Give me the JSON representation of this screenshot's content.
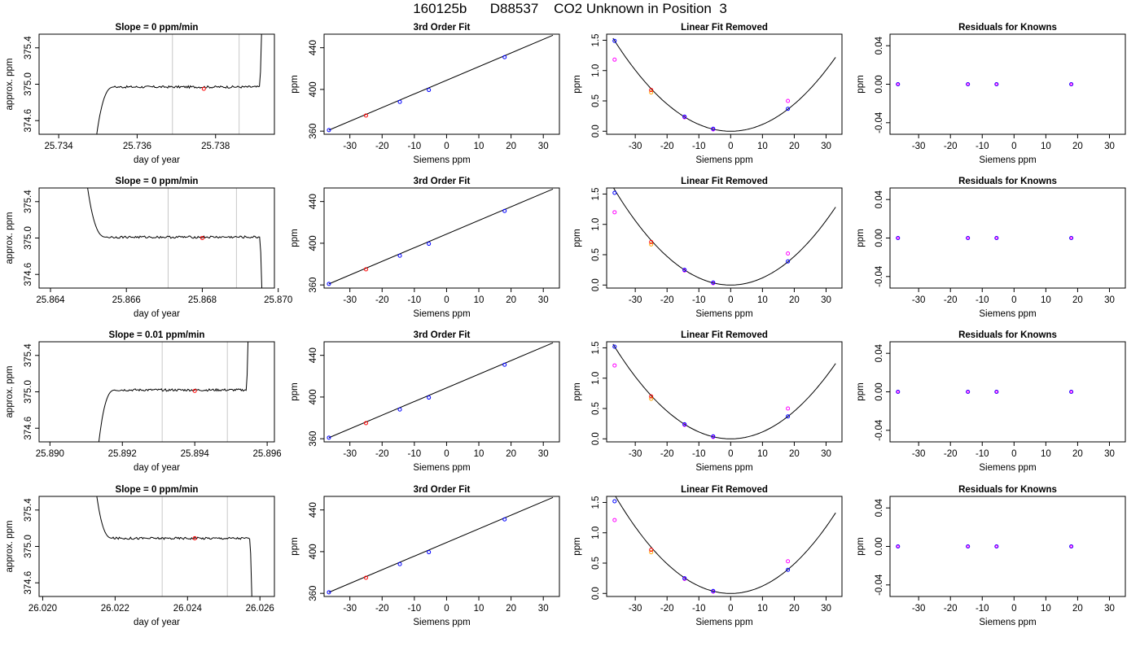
{
  "header": {
    "title": "160125b      D88537    CO2 Unknown in Position  3"
  },
  "colors": {
    "axis": "#000000",
    "trace": "#000000",
    "window_line": "#c8c8c8",
    "known": "#0000ff",
    "unknown": "#ff0000",
    "raw_residual": "#ff00ff",
    "sample_orange": "#ffa500"
  },
  "chart_data": [
    {
      "type": "line",
      "title": "Slope =  0  ppm/min",
      "xlabel": "day of year",
      "ylabel": "approx. ppm",
      "xlim": [
        25.7335,
        25.7395
      ],
      "ylim": [
        374.45,
        375.55
      ],
      "xticks": [
        "25.734",
        "25.736",
        "25.738"
      ],
      "xtick_values": [
        25.734,
        25.736,
        25.738
      ],
      "yticks": [
        "374.6",
        "375.0",
        "375.4"
      ],
      "ytick_values": [
        374.6,
        375.0,
        375.4
      ],
      "window": [
        25.7369,
        25.7386
      ],
      "plateau": 374.97,
      "start": 25.7348,
      "end": 25.7392,
      "end_dir": "up",
      "marker": {
        "x": 25.7377,
        "y": 374.95
      }
    },
    {
      "type": "line",
      "title": "3rd Order Fit",
      "xlabel": "Siemens ppm",
      "ylabel": "ppm",
      "xlim": [
        -38,
        35
      ],
      "ylim": [
        357,
        453
      ],
      "xticks": [
        "-30",
        "-20",
        "-10",
        "0",
        "10",
        "20",
        "30"
      ],
      "xtick_values": [
        -30,
        -20,
        -10,
        0,
        10,
        20,
        30
      ],
      "yticks": [
        "360",
        "400",
        "440"
      ],
      "ytick_values": [
        360,
        400,
        440
      ],
      "line": [
        [
          -36.5,
          361
        ],
        [
          33,
          452
        ]
      ],
      "knowns": [
        [
          -36.5,
          361
        ],
        [
          -14.5,
          388
        ],
        [
          -5.5,
          399.5
        ],
        [
          18,
          431
        ]
      ],
      "unknown": [
        [
          -25,
          375
        ]
      ]
    },
    {
      "type": "line",
      "title": "Linear Fit Removed",
      "xlabel": "Siemens ppm",
      "ylabel": "ppm",
      "xlim": [
        -39,
        35
      ],
      "ylim": [
        -0.05,
        1.6
      ],
      "xticks": [
        "-30",
        "-20",
        "-10",
        "0",
        "10",
        "20",
        "30"
      ],
      "xtick_values": [
        -30,
        -20,
        -10,
        0,
        10,
        20,
        30
      ],
      "yticks": [
        "0.0",
        "0.5",
        "1.0",
        "1.5"
      ],
      "ytick_values": [
        0,
        0.5,
        1.0,
        1.5
      ],
      "curve_k": 0.00112,
      "curve_range": [
        -37,
        33
      ],
      "knowns": [
        [
          -36.5,
          1.49
        ],
        [
          -14.5,
          0.24
        ],
        [
          -5.5,
          0.04
        ],
        [
          18,
          0.37
        ]
      ],
      "raw": [
        [
          -36.5,
          1.18
        ],
        [
          -14.5,
          0.23
        ],
        [
          -5.5,
          0.03
        ],
        [
          18,
          0.5
        ]
      ],
      "unknown": [
        [
          -25,
          0.68
        ]
      ],
      "orange": [
        [
          -25,
          0.64
        ]
      ]
    },
    {
      "type": "scatter",
      "title": "Residuals for Knowns",
      "xlabel": "Siemens ppm",
      "ylabel": "ppm",
      "xlim": [
        -39,
        35
      ],
      "ylim": [
        -0.052,
        0.052
      ],
      "xticks": [
        "-30",
        "-20",
        "-10",
        "0",
        "10",
        "20",
        "30"
      ],
      "xtick_values": [
        -30,
        -20,
        -10,
        0,
        10,
        20,
        30
      ],
      "yticks": [
        "-0.04",
        "0.00",
        "0.04"
      ],
      "ytick_values": [
        -0.04,
        0,
        0.04
      ],
      "points": [
        [
          -36.5,
          0
        ],
        [
          -14.5,
          0
        ],
        [
          -5.5,
          0
        ],
        [
          18,
          0
        ]
      ]
    },
    {
      "type": "line",
      "title": "Slope =  0  ppm/min",
      "xlabel": "day of year",
      "ylabel": "approx. ppm",
      "xlim": [
        25.8637,
        25.8699
      ],
      "ylim": [
        374.45,
        375.55
      ],
      "xticks": [
        "25.864",
        "25.866",
        "25.868",
        "25.870"
      ],
      "xtick_values": [
        25.864,
        25.866,
        25.868,
        25.87
      ],
      "yticks": [
        "374.6",
        "375.0",
        "375.4"
      ],
      "ytick_values": [
        374.6,
        375.0,
        375.4
      ],
      "window": [
        25.8671,
        25.8689
      ],
      "plateau": 375.01,
      "start": 25.8648,
      "end": 25.8696,
      "start_dir": "down",
      "end_dir": "down",
      "marker": {
        "x": 25.868,
        "y": 375.0
      }
    },
    {
      "type": "line",
      "title": "3rd Order Fit",
      "xlabel": "Siemens ppm",
      "ylabel": "ppm",
      "xlim": [
        -38,
        35
      ],
      "ylim": [
        357,
        453
      ],
      "xticks": [
        "-30",
        "-20",
        "-10",
        "0",
        "10",
        "20",
        "30"
      ],
      "xtick_values": [
        -30,
        -20,
        -10,
        0,
        10,
        20,
        30
      ],
      "yticks": [
        "360",
        "400",
        "440"
      ],
      "ytick_values": [
        360,
        400,
        440
      ],
      "line": [
        [
          -36.5,
          361
        ],
        [
          33,
          452
        ]
      ],
      "knowns": [
        [
          -36.5,
          361
        ],
        [
          -14.5,
          388
        ],
        [
          -5.5,
          399.5
        ],
        [
          18,
          431
        ]
      ],
      "unknown": [
        [
          -25,
          375
        ]
      ]
    },
    {
      "type": "line",
      "title": "Linear Fit Removed",
      "xlabel": "Siemens ppm",
      "ylabel": "ppm",
      "xlim": [
        -39,
        35
      ],
      "ylim": [
        -0.05,
        1.6
      ],
      "xticks": [
        "-30",
        "-20",
        "-10",
        "0",
        "10",
        "20",
        "30"
      ],
      "xtick_values": [
        -30,
        -20,
        -10,
        0,
        10,
        20,
        30
      ],
      "yticks": [
        "0.0",
        "0.5",
        "1.0",
        "1.5"
      ],
      "ytick_values": [
        0,
        0.5,
        1.0,
        1.5
      ],
      "curve_k": 0.00118,
      "curve_range": [
        -37,
        33
      ],
      "knowns": [
        [
          -36.5,
          1.52
        ],
        [
          -14.5,
          0.25
        ],
        [
          -5.5,
          0.04
        ],
        [
          18,
          0.39
        ]
      ],
      "raw": [
        [
          -36.5,
          1.2
        ],
        [
          -14.5,
          0.24
        ],
        [
          -5.5,
          0.03
        ],
        [
          18,
          0.52
        ]
      ],
      "unknown": [
        [
          -25,
          0.71
        ]
      ],
      "orange": [
        [
          -25,
          0.67
        ]
      ]
    },
    {
      "type": "scatter",
      "title": "Residuals for Knowns",
      "xlabel": "Siemens ppm",
      "ylabel": "ppm",
      "xlim": [
        -39,
        35
      ],
      "ylim": [
        -0.052,
        0.052
      ],
      "xticks": [
        "-30",
        "-20",
        "-10",
        "0",
        "10",
        "20",
        "30"
      ],
      "xtick_values": [
        -30,
        -20,
        -10,
        0,
        10,
        20,
        30
      ],
      "yticks": [
        "-0.04",
        "0.00",
        "0.04"
      ],
      "ytick_values": [
        -0.04,
        0,
        0.04
      ],
      "points": [
        [
          -36.5,
          0
        ],
        [
          -14.5,
          0
        ],
        [
          -5.5,
          0
        ],
        [
          18,
          0
        ]
      ]
    },
    {
      "type": "line",
      "title": "Slope =  0.01  ppm/min",
      "xlabel": "day of year",
      "ylabel": "approx. ppm",
      "xlim": [
        25.8897,
        25.8962
      ],
      "ylim": [
        374.45,
        375.55
      ],
      "xticks": [
        "25.890",
        "25.892",
        "25.894",
        "25.896"
      ],
      "xtick_values": [
        25.89,
        25.892,
        25.894,
        25.896
      ],
      "yticks": [
        "374.6",
        "375.0",
        "375.4"
      ],
      "ytick_values": [
        374.6,
        375.0,
        375.4
      ],
      "window": [
        25.8931,
        25.8949
      ],
      "plateau": 375.02,
      "start": 25.8912,
      "end": 25.8955,
      "end_dir": "up",
      "marker": {
        "x": 25.894,
        "y": 375.01
      }
    },
    {
      "type": "line",
      "title": "3rd Order Fit",
      "xlabel": "Siemens ppm",
      "ylabel": "ppm",
      "xlim": [
        -38,
        35
      ],
      "ylim": [
        357,
        453
      ],
      "xticks": [
        "-30",
        "-20",
        "-10",
        "0",
        "10",
        "20",
        "30"
      ],
      "xtick_values": [
        -30,
        -20,
        -10,
        0,
        10,
        20,
        30
      ],
      "yticks": [
        "360",
        "400",
        "440"
      ],
      "ytick_values": [
        360,
        400,
        440
      ],
      "line": [
        [
          -36.5,
          361
        ],
        [
          33,
          452
        ]
      ],
      "knowns": [
        [
          -36.5,
          361
        ],
        [
          -14.5,
          388
        ],
        [
          -5.5,
          399.5
        ],
        [
          18,
          431
        ]
      ],
      "unknown": [
        [
          -25,
          375
        ]
      ]
    },
    {
      "type": "line",
      "title": "Linear Fit Removed",
      "xlabel": "Siemens ppm",
      "ylabel": "ppm",
      "xlim": [
        -39,
        35
      ],
      "ylim": [
        -0.05,
        1.6
      ],
      "xticks": [
        "-30",
        "-20",
        "-10",
        "0",
        "10",
        "20",
        "30"
      ],
      "xtick_values": [
        -30,
        -20,
        -10,
        0,
        10,
        20,
        30
      ],
      "yticks": [
        "0.0",
        "0.5",
        "1.0",
        "1.5"
      ],
      "ytick_values": [
        0,
        0.5,
        1.0,
        1.5
      ],
      "curve_k": 0.00114,
      "curve_range": [
        -37,
        33
      ],
      "knowns": [
        [
          -36.5,
          1.52
        ],
        [
          -14.5,
          0.24
        ],
        [
          -5.5,
          0.04
        ],
        [
          18,
          0.37
        ]
      ],
      "raw": [
        [
          -36.5,
          1.21
        ],
        [
          -14.5,
          0.23
        ],
        [
          -5.5,
          0.03
        ],
        [
          18,
          0.5
        ]
      ],
      "unknown": [
        [
          -25,
          0.7
        ]
      ],
      "orange": [
        [
          -25,
          0.66
        ]
      ]
    },
    {
      "type": "scatter",
      "title": "Residuals for Knowns",
      "xlabel": "Siemens ppm",
      "ylabel": "ppm",
      "xlim": [
        -39,
        35
      ],
      "ylim": [
        -0.052,
        0.052
      ],
      "xticks": [
        "-30",
        "-20",
        "-10",
        "0",
        "10",
        "20",
        "30"
      ],
      "xtick_values": [
        -30,
        -20,
        -10,
        0,
        10,
        20,
        30
      ],
      "yticks": [
        "-0.04",
        "0.00",
        "0.04"
      ],
      "ytick_values": [
        -0.04,
        0,
        0.04
      ],
      "points": [
        [
          -36.5,
          0
        ],
        [
          -14.5,
          0
        ],
        [
          -5.5,
          0
        ],
        [
          18,
          0
        ]
      ]
    },
    {
      "type": "line",
      "title": "Slope =  0  ppm/min",
      "xlabel": "day of year",
      "ylabel": "approx. ppm",
      "xlim": [
        26.0199,
        26.0264
      ],
      "ylim": [
        374.45,
        375.55
      ],
      "xticks": [
        "26.020",
        "26.022",
        "26.024",
        "26.026"
      ],
      "xtick_values": [
        26.02,
        26.022,
        26.024,
        26.026
      ],
      "yticks": [
        "374.6",
        "375.0",
        "375.4"
      ],
      "ytick_values": [
        374.6,
        375.0,
        375.4
      ],
      "window": [
        26.0233,
        26.0251
      ],
      "plateau": 375.09,
      "start": 26.0213,
      "end": 26.0258,
      "start_dir": "down",
      "end_dir": "down",
      "marker": {
        "x": 26.0242,
        "y": 375.09
      }
    },
    {
      "type": "line",
      "title": "3rd Order Fit",
      "xlabel": "Siemens ppm",
      "ylabel": "ppm",
      "xlim": [
        -38,
        35
      ],
      "ylim": [
        357,
        453
      ],
      "xticks": [
        "-30",
        "-20",
        "-10",
        "0",
        "10",
        "20",
        "30"
      ],
      "xtick_values": [
        -30,
        -20,
        -10,
        0,
        10,
        20,
        30
      ],
      "yticks": [
        "360",
        "400",
        "440"
      ],
      "ytick_values": [
        360,
        400,
        440
      ],
      "line": [
        [
          -36.5,
          361
        ],
        [
          33,
          452
        ]
      ],
      "knowns": [
        [
          -36.5,
          361
        ],
        [
          -14.5,
          388
        ],
        [
          -5.5,
          399.5
        ],
        [
          18,
          431
        ]
      ],
      "unknown": [
        [
          -25,
          375
        ]
      ]
    },
    {
      "type": "line",
      "title": "Linear Fit Removed",
      "xlabel": "Siemens ppm",
      "ylabel": "ppm",
      "xlim": [
        -39,
        35
      ],
      "ylim": [
        -0.05,
        1.6
      ],
      "xticks": [
        "-30",
        "-20",
        "-10",
        "0",
        "10",
        "20",
        "30"
      ],
      "xtick_values": [
        -30,
        -20,
        -10,
        0,
        10,
        20,
        30
      ],
      "yticks": [
        "0.0",
        "0.5",
        "1.0",
        "1.5"
      ],
      "ytick_values": [
        0,
        0.5,
        1.0,
        1.5
      ],
      "curve_k": 0.00122,
      "curve_range": [
        -37,
        33
      ],
      "knowns": [
        [
          -36.5,
          1.52
        ],
        [
          -14.5,
          0.25
        ],
        [
          -5.5,
          0.04
        ],
        [
          18,
          0.39
        ]
      ],
      "raw": [
        [
          -36.5,
          1.21
        ],
        [
          -14.5,
          0.24
        ],
        [
          -5.5,
          0.03
        ],
        [
          18,
          0.53
        ]
      ],
      "unknown": [
        [
          -25,
          0.72
        ]
      ],
      "orange": [
        [
          -25,
          0.68
        ]
      ]
    },
    {
      "type": "scatter",
      "title": "Residuals for Knowns",
      "xlabel": "Siemens ppm",
      "ylabel": "ppm",
      "xlim": [
        -39,
        35
      ],
      "ylim": [
        -0.052,
        0.052
      ],
      "xticks": [
        "-30",
        "-20",
        "-10",
        "0",
        "10",
        "20",
        "30"
      ],
      "xtick_values": [
        -30,
        -20,
        -10,
        0,
        10,
        20,
        30
      ],
      "yticks": [
        "-0.04",
        "0.00",
        "0.04"
      ],
      "ytick_values": [
        -0.04,
        0,
        0.04
      ],
      "points": [
        [
          -36.5,
          0
        ],
        [
          -14.5,
          0
        ],
        [
          -5.5,
          0
        ],
        [
          18,
          0
        ]
      ]
    }
  ]
}
